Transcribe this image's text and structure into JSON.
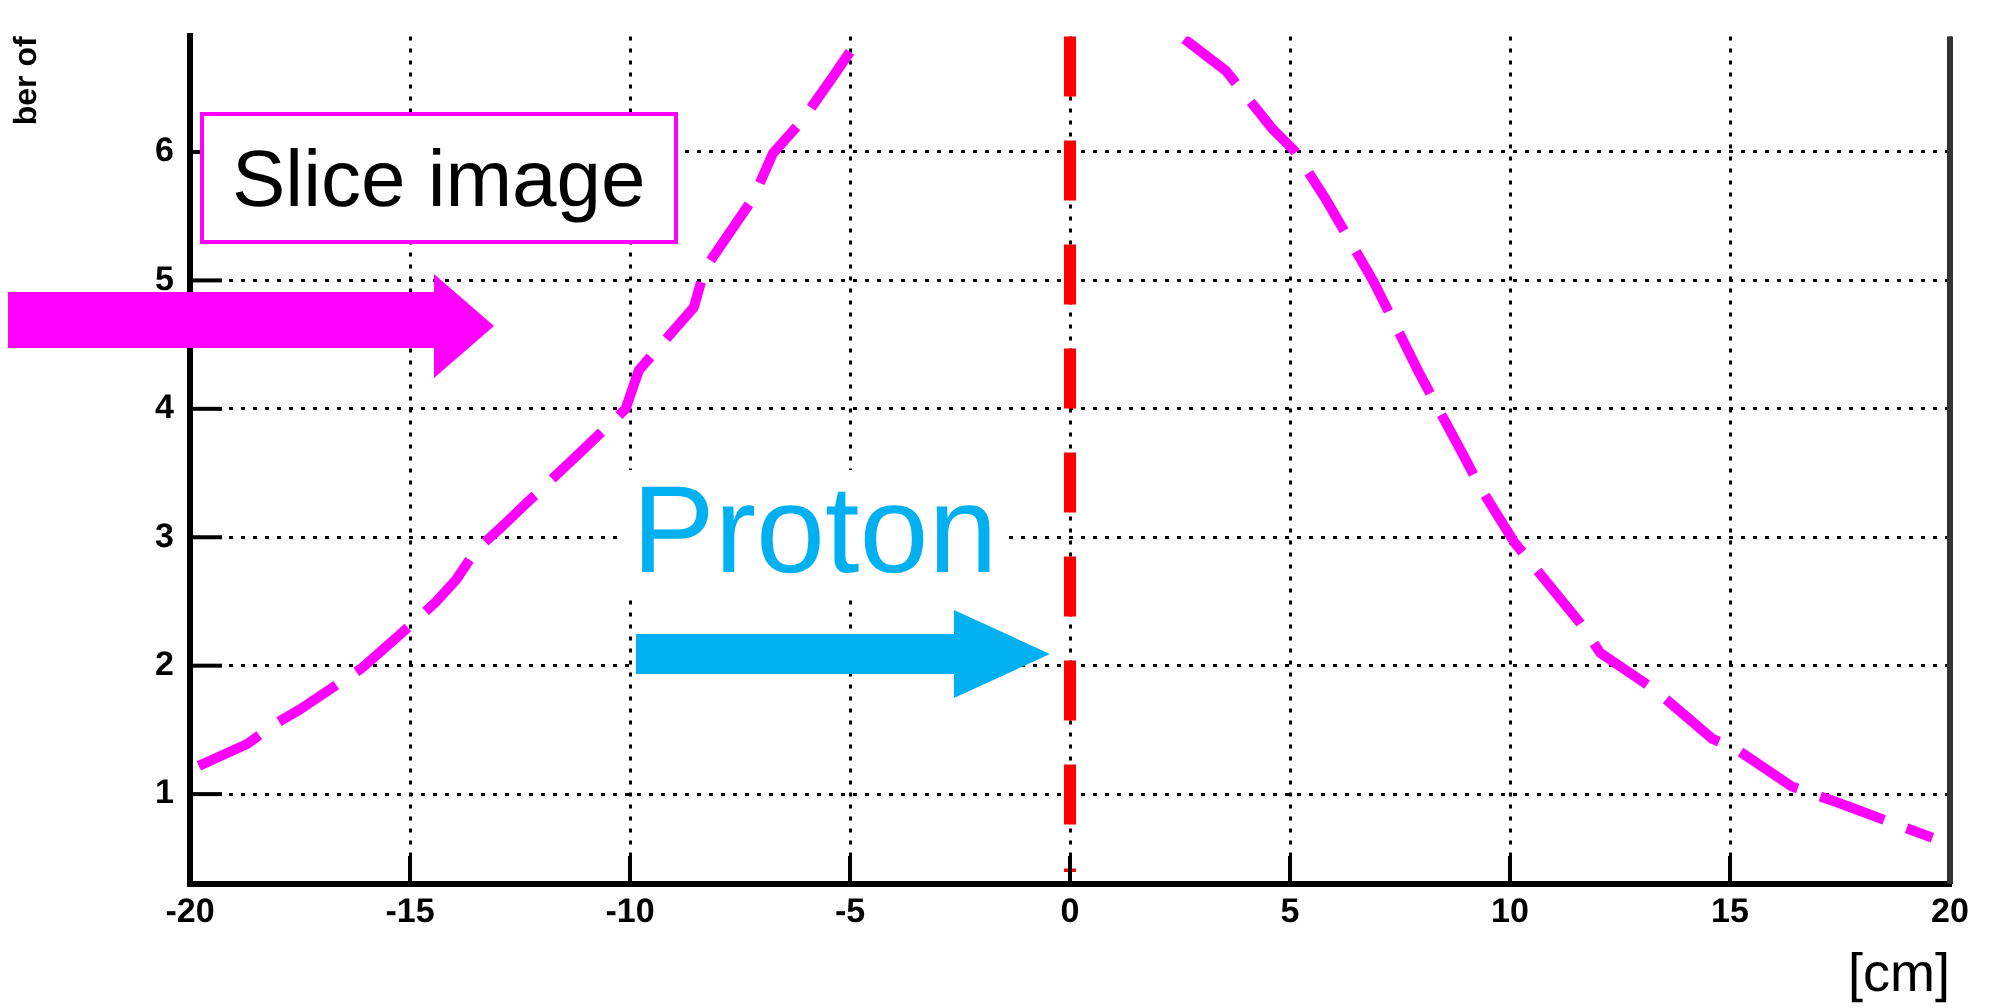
{
  "chart_data": {
    "type": "line",
    "ylabel": "ber of",
    "xlabel": "[cm]",
    "annotations": [
      "Slice image",
      "Proton"
    ],
    "x": [
      -19.8,
      -18.7,
      -18.1,
      -17.5,
      -16.1,
      -15.2,
      -14.4,
      -13.95,
      -13.5,
      -12.95,
      -12.4,
      -11.1,
      -10.1,
      -9.8,
      -8.55,
      -8.3,
      -7.2,
      -6.75,
      -6.1,
      -5.4,
      -4.8,
      0,
      2.6,
      3.55,
      4.6,
      5.1,
      5.8,
      6.9,
      7.95,
      9.0,
      9.3,
      10.1,
      11.6,
      12.05,
      13.3,
      14.6,
      15.1,
      16.4,
      17.4,
      17.95,
      19.6
    ],
    "series": [
      {
        "color": "#ff00ff",
        "values": [
          1.22,
          1.39,
          1.54,
          1.66,
          1.98,
          2.25,
          2.5,
          2.67,
          2.9,
          3.07,
          3.25,
          3.67,
          4.0,
          4.3,
          4.79,
          5.09,
          5.64,
          5.99,
          6.24,
          6.58,
          6.88,
          null,
          6.88,
          6.63,
          6.18,
          6.01,
          5.64,
          4.99,
          4.27,
          3.6,
          3.4,
          2.96,
          2.33,
          2.1,
          1.81,
          1.43,
          1.36,
          1.06,
          0.94,
          0.87,
          0.66
        ]
      }
    ],
    "xlim": [
      -20,
      20
    ],
    "ylim": [
      0.3,
      6.9
    ],
    "xticks": [
      -20,
      -15,
      -10,
      -5,
      0,
      5,
      10,
      15,
      20
    ],
    "yticks": [
      1,
      2,
      3,
      4,
      5,
      6
    ],
    "ref_lines": [
      {
        "axis": "x",
        "value": 0,
        "color": "#ff0000",
        "line_style": "dashed"
      }
    ],
    "grid": true,
    "line_style": "dashed"
  }
}
